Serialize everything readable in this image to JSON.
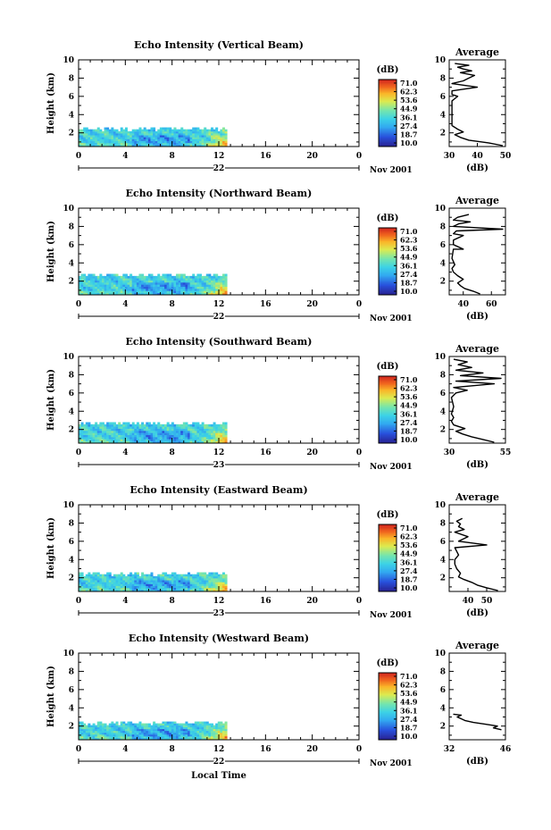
{
  "chart_data": [
    {
      "type": "heatmap",
      "title": "Echo Intensity (Vertical Beam)",
      "xlabel": "",
      "ylabel": "Height (km)",
      "xlim": [
        0,
        24
      ],
      "ylim": [
        0.5,
        10
      ],
      "xticks": [
        "0",
        "4",
        "8",
        "12",
        "16",
        "20",
        "0"
      ],
      "yticks": [
        "2",
        "4",
        "6",
        "8",
        "10"
      ],
      "day_label": "22",
      "date_label": "Nov 2001",
      "data_extent": {
        "x": [
          0,
          12.7
        ],
        "y": [
          0.5,
          2.6
        ]
      },
      "colorbar": {
        "unit": "(dB)",
        "labels": [
          "71.0",
          "62.3",
          "53.6",
          "44.9",
          "36.1",
          "27.4",
          "18.7",
          "10.0"
        ]
      },
      "profile": {
        "title": "Average",
        "xlabel": "(dB)",
        "xlim": [
          30,
          50
        ],
        "xticks": [
          "30",
          "40",
          "50"
        ],
        "yticks": [
          "2",
          "4",
          "6",
          "8",
          "10"
        ],
        "x": [
          49,
          44,
          37,
          34,
          32,
          35,
          33,
          31,
          31,
          31,
          31,
          31,
          33,
          31,
          31,
          40,
          31,
          35,
          37,
          39,
          34,
          38,
          35,
          33,
          37,
          32
        ],
        "y": [
          0.6,
          0.9,
          1.2,
          1.5,
          1.8,
          2.1,
          2.4,
          2.8,
          3.2,
          3.6,
          4.5,
          5.5,
          6.0,
          6.2,
          6.6,
          7.0,
          7.4,
          7.7,
          8.0,
          8.3,
          8.6,
          8.8,
          9.0,
          9.2,
          9.4,
          9.6
        ]
      }
    },
    {
      "type": "heatmap",
      "title": "Echo Intensity (Northward Beam)",
      "xlabel": "",
      "ylabel": "Height (km)",
      "xlim": [
        0,
        24
      ],
      "ylim": [
        0.5,
        10
      ],
      "xticks": [
        "0",
        "4",
        "8",
        "12",
        "16",
        "20",
        "0"
      ],
      "yticks": [
        "2",
        "4",
        "6",
        "8",
        "10"
      ],
      "day_label": "22",
      "date_label": "Nov 2001",
      "data_extent": {
        "x": [
          0,
          12.7
        ],
        "y": [
          0.5,
          2.8
        ]
      },
      "colorbar": {
        "unit": "(dB)",
        "labels": [
          "71.0",
          "62.3",
          "53.6",
          "44.9",
          "36.1",
          "27.4",
          "18.7",
          "10.0"
        ]
      },
      "profile": {
        "title": "Average",
        "xlabel": "(dB)",
        "xlim": [
          30,
          70
        ],
        "xticks": [
          "40",
          "60"
        ],
        "yticks": [
          "2",
          "4",
          "6",
          "8",
          "10"
        ],
        "x": [
          52,
          47,
          41,
          38,
          36,
          40,
          36,
          33,
          32,
          34,
          32,
          33,
          40,
          33,
          33,
          40,
          33,
          35,
          68,
          33,
          37,
          45,
          33,
          36,
          44
        ],
        "y": [
          0.6,
          0.9,
          1.2,
          1.5,
          1.8,
          2.2,
          2.6,
          3.0,
          3.4,
          3.8,
          4.5,
          5.5,
          5.5,
          6.0,
          6.5,
          7.0,
          7.2,
          7.5,
          7.7,
          8.0,
          8.3,
          8.5,
          8.7,
          9.0,
          9.3
        ]
      }
    },
    {
      "type": "heatmap",
      "title": "Echo Intensity (Southward Beam)",
      "xlabel": "",
      "ylabel": "Height (km)",
      "xlim": [
        0,
        24
      ],
      "ylim": [
        0.5,
        10
      ],
      "xticks": [
        "0",
        "4",
        "8",
        "12",
        "16",
        "20",
        "0"
      ],
      "yticks": [
        "2",
        "4",
        "6",
        "8",
        "10"
      ],
      "day_label": "23",
      "date_label": "Nov 2001",
      "data_extent": {
        "x": [
          0,
          12.7
        ],
        "y": [
          0.5,
          2.8
        ]
      },
      "colorbar": {
        "unit": "(dB)",
        "labels": [
          "71.0",
          "62.3",
          "53.6",
          "44.9",
          "36.1",
          "27.4",
          "18.7",
          "10.0"
        ]
      },
      "profile": {
        "title": "Average",
        "xlabel": "(dB)",
        "xlim": [
          30,
          55
        ],
        "xticks": [
          "30",
          "55"
        ],
        "yticks": [
          "2",
          "4",
          "6",
          "8",
          "10"
        ],
        "x": [
          50,
          45,
          40,
          36,
          33,
          37,
          32,
          31,
          32,
          31,
          32,
          31,
          33,
          38,
          32,
          50,
          33,
          53,
          35,
          45,
          33,
          40,
          34,
          38,
          32
        ],
        "y": [
          0.6,
          0.9,
          1.2,
          1.5,
          1.8,
          2.1,
          2.5,
          2.9,
          3.3,
          3.7,
          4.5,
          5.5,
          6.0,
          6.3,
          6.6,
          7.0,
          7.3,
          7.6,
          7.9,
          8.2,
          8.5,
          8.8,
          9.1,
          9.4,
          9.7
        ]
      }
    },
    {
      "type": "heatmap",
      "title": "Echo Intensity (Eastward Beam)",
      "xlabel": "",
      "ylabel": "Height (km)",
      "xlim": [
        0,
        24
      ],
      "ylim": [
        0.5,
        10
      ],
      "xticks": [
        "0",
        "4",
        "8",
        "12",
        "16",
        "20",
        "0"
      ],
      "yticks": [
        "2",
        "4",
        "6",
        "8",
        "10"
      ],
      "day_label": "23",
      "date_label": "Nov 2001",
      "data_extent": {
        "x": [
          0,
          12.7
        ],
        "y": [
          0.5,
          2.6
        ]
      },
      "colorbar": {
        "unit": "(dB)",
        "labels": [
          "71.0",
          "62.3",
          "53.6",
          "44.9",
          "36.1",
          "27.4",
          "18.7",
          "10.0"
        ]
      },
      "profile": {
        "title": "Average",
        "xlabel": "(dB)",
        "xlim": [
          30,
          60
        ],
        "xticks": [
          "40",
          "50"
        ],
        "yticks": [
          "2",
          "4",
          "6",
          "8",
          "10"
        ],
        "x": [
          56,
          50,
          45,
          42,
          38,
          35,
          36,
          34,
          33,
          33,
          35,
          33,
          50,
          35,
          40,
          33,
          38,
          35,
          36,
          34,
          37
        ],
        "y": [
          0.6,
          0.9,
          1.2,
          1.5,
          1.8,
          2.1,
          2.5,
          3.0,
          3.5,
          4.0,
          4.5,
          5.3,
          5.6,
          6.0,
          6.5,
          7.0,
          7.3,
          7.6,
          7.9,
          8.2,
          8.5
        ]
      }
    },
    {
      "type": "heatmap",
      "title": "Echo Intensity (Westward Beam)",
      "xlabel": "Local Time",
      "ylabel": "Height (km)",
      "xlim": [
        0,
        24
      ],
      "ylim": [
        0.5,
        10
      ],
      "xticks": [
        "0",
        "4",
        "8",
        "12",
        "16",
        "20",
        "0"
      ],
      "yticks": [
        "2",
        "4",
        "6",
        "8",
        "10"
      ],
      "day_label": "22",
      "date_label": "Nov 2001",
      "data_extent": {
        "x": [
          0,
          12.7
        ],
        "y": [
          0.5,
          2.5
        ]
      },
      "colorbar": {
        "unit": "(dB)",
        "labels": [
          "71.0",
          "62.3",
          "53.6",
          "44.9",
          "36.1",
          "27.4",
          "18.7",
          "10.0"
        ]
      },
      "profile": {
        "title": "Average",
        "xlabel": "(dB)",
        "xlim": [
          32,
          46
        ],
        "xticks": [
          "32",
          "46"
        ],
        "yticks": [
          "2",
          "4",
          "6",
          "8",
          "10"
        ],
        "x": [
          45,
          43,
          44,
          41,
          38,
          36,
          35,
          34,
          35,
          33
        ],
        "y": [
          1.6,
          1.8,
          2.0,
          2.2,
          2.4,
          2.6,
          2.8,
          3.0,
          3.2,
          3.3
        ]
      }
    }
  ]
}
